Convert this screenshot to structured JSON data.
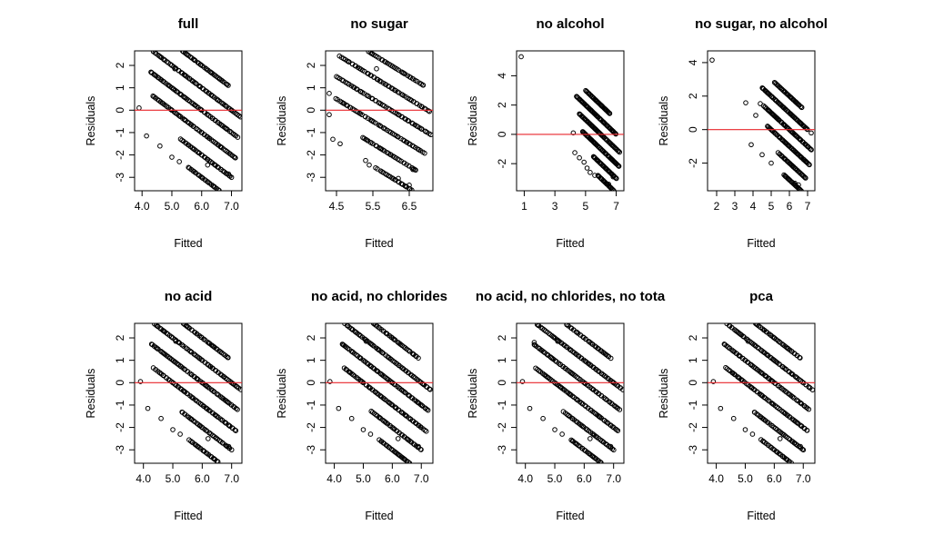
{
  "colors": {
    "points": "#000000",
    "zero_line": "#e8262c",
    "axes": "#000000",
    "background": "#ffffff"
  },
  "chart_data": [
    {
      "type": "scatter",
      "title": "full",
      "xlabel": "Fitted",
      "ylabel": "Residuals",
      "xlim": [
        3.75,
        7.35
      ],
      "ylim": [
        -3.6,
        2.65
      ],
      "xticks": [
        4.0,
        5.0,
        6.0,
        7.0
      ],
      "xtick_labels": [
        "4.0",
        "5.0",
        "6.0",
        "7.0"
      ],
      "yticks": [
        -3,
        -2,
        -1,
        0,
        1,
        2
      ],
      "ytick_labels": [
        "-3",
        "-2",
        "-1",
        "0",
        "1",
        "2"
      ],
      "reference_line": 0,
      "bands": [
        {
          "level": 3,
          "x_from": 5.55,
          "x_to": 7.0
        },
        {
          "level": 4,
          "x_from": 5.3,
          "x_to": 7.0
        },
        {
          "level": 5,
          "x_from": 4.35,
          "x_to": 7.15
        },
        {
          "level": 6,
          "x_from": 4.3,
          "x_to": 7.2
        },
        {
          "level": 7,
          "x_from": 4.2,
          "x_to": 7.3
        },
        {
          "level": 8,
          "x_from": 4.8,
          "x_to": 6.9
        }
      ],
      "sparse_points": [
        [
          3.9,
          0.1
        ],
        [
          4.15,
          -1.15
        ],
        [
          4.6,
          -1.6
        ],
        [
          4.3,
          1.7
        ],
        [
          5.1,
          1.85
        ],
        [
          5.0,
          -2.1
        ],
        [
          5.25,
          -2.3
        ],
        [
          6.2,
          -2.45
        ],
        [
          6.4,
          -3.4
        ],
        [
          6.9,
          -2.85
        ]
      ]
    },
    {
      "type": "scatter",
      "title": "no sugar",
      "xlabel": "Fitted",
      "ylabel": "Residuals",
      "xlim": [
        4.2,
        7.15
      ],
      "ylim": [
        -3.6,
        2.65
      ],
      "xticks": [
        4.5,
        5.5,
        6.5
      ],
      "xtick_labels": [
        "4.5",
        "5.5",
        "6.5"
      ],
      "yticks": [
        -3,
        -2,
        -1,
        0,
        1,
        2
      ],
      "ytick_labels": [
        "-3",
        "-2",
        "-1",
        "0",
        "1",
        "2"
      ],
      "reference_line": 0,
      "bands": [
        {
          "level": 3,
          "x_from": 5.6,
          "x_to": 6.9
        },
        {
          "level": 4,
          "x_from": 5.2,
          "x_to": 6.7
        },
        {
          "level": 5,
          "x_from": 4.5,
          "x_to": 6.9
        },
        {
          "level": 6,
          "x_from": 4.5,
          "x_to": 7.1
        },
        {
          "level": 7,
          "x_from": 4.6,
          "x_to": 7.05
        },
        {
          "level": 8,
          "x_from": 5.0,
          "x_to": 6.9
        }
      ],
      "sparse_points": [
        [
          4.3,
          0.75
        ],
        [
          4.3,
          -0.2
        ],
        [
          4.4,
          -1.3
        ],
        [
          4.6,
          -1.5
        ],
        [
          5.3,
          -2.25
        ],
        [
          5.4,
          -2.45
        ],
        [
          6.2,
          -3.05
        ],
        [
          6.5,
          -3.35
        ],
        [
          6.6,
          -2.65
        ],
        [
          5.6,
          1.85
        ]
      ]
    },
    {
      "type": "scatter",
      "title": "no alcohol",
      "xlabel": "Fitted",
      "ylabel": "Residuals",
      "xlim": [
        0.5,
        7.5
      ],
      "ylim": [
        -3.85,
        5.7
      ],
      "xticks": [
        1,
        3,
        5,
        7
      ],
      "xtick_labels": [
        "1",
        "3",
        "5",
        "7"
      ],
      "yticks": [
        -2,
        0,
        2,
        4
      ],
      "ytick_labels": [
        "-2",
        "0",
        "2",
        "4"
      ],
      "reference_line": 0,
      "bands": [
        {
          "level": 3,
          "x_from": 5.8,
          "x_to": 7.0
        },
        {
          "level": 4,
          "x_from": 5.5,
          "x_to": 7.0
        },
        {
          "level": 5,
          "x_from": 4.8,
          "x_to": 7.2
        },
        {
          "level": 6,
          "x_from": 4.6,
          "x_to": 7.2
        },
        {
          "level": 7,
          "x_from": 4.4,
          "x_to": 7.0
        },
        {
          "level": 8,
          "x_from": 5.0,
          "x_to": 6.6
        }
      ],
      "sparse_points": [
        [
          0.8,
          5.3
        ],
        [
          4.2,
          0.1
        ],
        [
          4.3,
          -1.25
        ],
        [
          4.6,
          -1.6
        ],
        [
          4.9,
          -1.9
        ],
        [
          5.1,
          -2.3
        ],
        [
          5.3,
          -2.6
        ],
        [
          5.6,
          -2.8
        ],
        [
          6.5,
          -3.4
        ],
        [
          6.8,
          -2.9
        ]
      ]
    },
    {
      "type": "scatter",
      "title": "no sugar, no alcohol",
      "xlabel": "Fitted",
      "ylabel": "Residuals",
      "xlim": [
        1.5,
        7.4
      ],
      "ylim": [
        -3.65,
        4.7
      ],
      "xticks": [
        2,
        3,
        4,
        5,
        6,
        7
      ],
      "xtick_labels": [
        "2",
        "3",
        "4",
        "5",
        "6",
        "7"
      ],
      "yticks": [
        -2,
        0,
        2,
        4
      ],
      "ytick_labels": [
        "-2",
        "0",
        "2",
        "4"
      ],
      "reference_line": 0,
      "bands": [
        {
          "level": 3,
          "x_from": 5.7,
          "x_to": 7.1
        },
        {
          "level": 4,
          "x_from": 5.4,
          "x_to": 6.9
        },
        {
          "level": 5,
          "x_from": 4.8,
          "x_to": 7.1
        },
        {
          "level": 6,
          "x_from": 4.6,
          "x_to": 7.2
        },
        {
          "level": 7,
          "x_from": 4.5,
          "x_to": 7.0
        },
        {
          "level": 8,
          "x_from": 5.2,
          "x_to": 6.7
        }
      ],
      "sparse_points": [
        [
          1.75,
          4.15
        ],
        [
          3.6,
          1.6
        ],
        [
          4.15,
          0.85
        ],
        [
          4.4,
          1.55
        ],
        [
          3.9,
          -0.9
        ],
        [
          4.5,
          -1.5
        ],
        [
          5.0,
          -2.0
        ],
        [
          6.3,
          -3.2
        ],
        [
          6.5,
          -3.3
        ],
        [
          7.2,
          -0.2
        ]
      ]
    },
    {
      "type": "scatter",
      "title": "no acid",
      "xlabel": "Fitted",
      "ylabel": "Residuals",
      "xlim": [
        3.7,
        7.35
      ],
      "ylim": [
        -3.6,
        2.65
      ],
      "xticks": [
        4.0,
        5.0,
        6.0,
        7.0
      ],
      "xtick_labels": [
        "4.0",
        "5.0",
        "6.0",
        "7.0"
      ],
      "yticks": [
        -3,
        -2,
        -1,
        0,
        1,
        2
      ],
      "ytick_labels": [
        "-3",
        "-2",
        "-1",
        "0",
        "1",
        "2"
      ],
      "reference_line": 0,
      "bands": [
        {
          "level": 3,
          "x_from": 5.55,
          "x_to": 7.0
        },
        {
          "level": 4,
          "x_from": 5.3,
          "x_to": 7.0
        },
        {
          "level": 5,
          "x_from": 4.35,
          "x_to": 7.15
        },
        {
          "level": 6,
          "x_from": 4.3,
          "x_to": 7.2
        },
        {
          "level": 7,
          "x_from": 4.2,
          "x_to": 7.3
        },
        {
          "level": 8,
          "x_from": 4.8,
          "x_to": 6.9
        }
      ],
      "sparse_points": [
        [
          3.9,
          0.05
        ],
        [
          4.15,
          -1.15
        ],
        [
          4.6,
          -1.6
        ],
        [
          4.3,
          1.7
        ],
        [
          5.1,
          1.85
        ],
        [
          5.0,
          -2.1
        ],
        [
          5.25,
          -2.3
        ],
        [
          6.2,
          -2.5
        ],
        [
          6.4,
          -3.4
        ],
        [
          6.9,
          -2.85
        ]
      ]
    },
    {
      "type": "scatter",
      "title": "no acid, no chlorides",
      "xlabel": "Fitted",
      "ylabel": "Residuals",
      "xlim": [
        3.7,
        7.4
      ],
      "ylim": [
        -3.6,
        2.65
      ],
      "xticks": [
        4.0,
        5.0,
        6.0,
        7.0
      ],
      "xtick_labels": [
        "4.0",
        "5.0",
        "6.0",
        "7.0"
      ],
      "yticks": [
        -3,
        -2,
        -1,
        0,
        1,
        2
      ],
      "ytick_labels": [
        "-3",
        "-2",
        "-1",
        "0",
        "1",
        "2"
      ],
      "reference_line": 0,
      "bands": [
        {
          "level": 3,
          "x_from": 5.55,
          "x_to": 7.0
        },
        {
          "level": 4,
          "x_from": 5.3,
          "x_to": 7.0
        },
        {
          "level": 5,
          "x_from": 4.35,
          "x_to": 7.15
        },
        {
          "level": 6,
          "x_from": 4.3,
          "x_to": 7.25
        },
        {
          "level": 7,
          "x_from": 4.2,
          "x_to": 7.3
        },
        {
          "level": 8,
          "x_from": 4.8,
          "x_to": 6.9
        }
      ],
      "sparse_points": [
        [
          3.85,
          0.05
        ],
        [
          4.15,
          -1.15
        ],
        [
          4.6,
          -1.6
        ],
        [
          4.3,
          1.7
        ],
        [
          5.1,
          1.85
        ],
        [
          5.0,
          -2.1
        ],
        [
          5.25,
          -2.3
        ],
        [
          6.2,
          -2.5
        ],
        [
          6.4,
          -3.4
        ],
        [
          6.9,
          -2.85
        ]
      ]
    },
    {
      "type": "scatter",
      "title": "no acid, no chlorides, no tota",
      "xlabel": "Fitted",
      "ylabel": "Residuals",
      "xlim": [
        3.7,
        7.35
      ],
      "ylim": [
        -3.6,
        2.65
      ],
      "xticks": [
        4.0,
        5.0,
        6.0,
        7.0
      ],
      "xtick_labels": [
        "4.0",
        "5.0",
        "6.0",
        "7.0"
      ],
      "yticks": [
        -3,
        -2,
        -1,
        0,
        1,
        2
      ],
      "ytick_labels": [
        "-3",
        "-2",
        "-1",
        "0",
        "1",
        "2"
      ],
      "reference_line": 0,
      "bands": [
        {
          "level": 3,
          "x_from": 5.55,
          "x_to": 7.0
        },
        {
          "level": 4,
          "x_from": 5.3,
          "x_to": 7.0
        },
        {
          "level": 5,
          "x_from": 4.35,
          "x_to": 7.15
        },
        {
          "level": 6,
          "x_from": 4.3,
          "x_to": 7.2
        },
        {
          "level": 7,
          "x_from": 4.2,
          "x_to": 7.3
        },
        {
          "level": 8,
          "x_from": 4.8,
          "x_to": 6.9
        }
      ],
      "sparse_points": [
        [
          3.9,
          0.05
        ],
        [
          4.15,
          -1.15
        ],
        [
          4.6,
          -1.6
        ],
        [
          4.3,
          1.8
        ],
        [
          5.1,
          1.85
        ],
        [
          5.0,
          -2.1
        ],
        [
          5.25,
          -2.3
        ],
        [
          6.2,
          -2.5
        ],
        [
          6.4,
          -3.4
        ],
        [
          6.9,
          -2.85
        ]
      ]
    },
    {
      "type": "scatter",
      "title": "pca",
      "xlabel": "Fitted",
      "ylabel": "Residuals",
      "xlim": [
        3.7,
        7.4
      ],
      "ylim": [
        -3.6,
        2.65
      ],
      "xticks": [
        4.0,
        5.0,
        6.0,
        7.0
      ],
      "xtick_labels": [
        "4.0",
        "5.0",
        "6.0",
        "7.0"
      ],
      "yticks": [
        -3,
        -2,
        -1,
        0,
        1,
        2
      ],
      "ytick_labels": [
        "-3",
        "-2",
        "-1",
        "0",
        "1",
        "2"
      ],
      "reference_line": 0,
      "bands": [
        {
          "level": 3,
          "x_from": 5.55,
          "x_to": 7.0
        },
        {
          "level": 4,
          "x_from": 5.3,
          "x_to": 7.0
        },
        {
          "level": 5,
          "x_from": 4.35,
          "x_to": 7.15
        },
        {
          "level": 6,
          "x_from": 4.3,
          "x_to": 7.2
        },
        {
          "level": 7,
          "x_from": 4.2,
          "x_to": 7.3
        },
        {
          "level": 8,
          "x_from": 4.8,
          "x_to": 6.9
        }
      ],
      "sparse_points": [
        [
          3.9,
          0.05
        ],
        [
          4.15,
          -1.15
        ],
        [
          4.6,
          -1.6
        ],
        [
          4.3,
          1.7
        ],
        [
          5.1,
          1.85
        ],
        [
          5.0,
          -2.1
        ],
        [
          5.25,
          -2.3
        ],
        [
          6.2,
          -2.5
        ],
        [
          6.4,
          -3.4
        ],
        [
          6.9,
          -2.85
        ]
      ]
    }
  ]
}
